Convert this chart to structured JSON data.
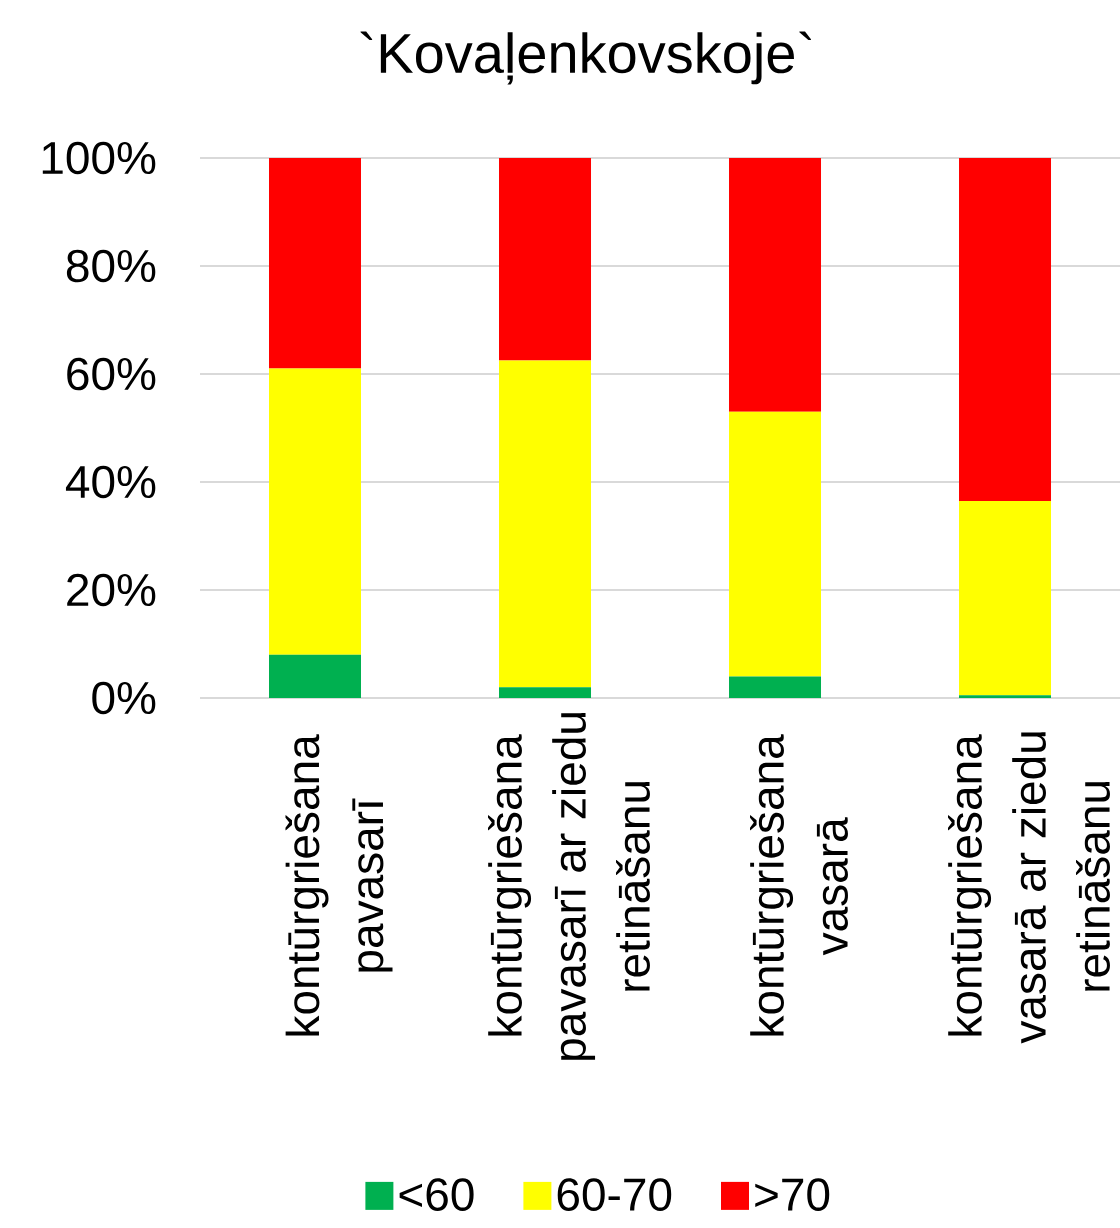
{
  "chart_data": {
    "type": "bar",
    "title": "`Kovaļenkovskoje`",
    "categories": [
      "kontūrgriešana pavasarī",
      "kontūrgriešana pavasarī ar ziedu retināšanu",
      "kontūrgriešana vasarā",
      "kontūrgriešana vasarā ar ziedu retināšanu"
    ],
    "stacked": true,
    "series": [
      {
        "name": "<60",
        "color": "#00b050",
        "values": [
          8,
          2,
          4,
          0.5
        ]
      },
      {
        "name": "60-70",
        "color": "#ffff00",
        "values": [
          53,
          60.5,
          49,
          36
        ]
      },
      {
        "name": ">70",
        "color": "#ff0000",
        "values": [
          39,
          37.5,
          47,
          63.5
        ]
      }
    ],
    "ylim": [
      0,
      100
    ],
    "yticks": [
      {
        "value": 0,
        "label": "0%"
      },
      {
        "value": 20,
        "label": "20%"
      },
      {
        "value": 40,
        "label": "40%"
      },
      {
        "value": 60,
        "label": "60%"
      },
      {
        "value": 80,
        "label": "80%"
      },
      {
        "value": 100,
        "label": "100%"
      }
    ],
    "grid": "y",
    "legend": "bottom"
  }
}
